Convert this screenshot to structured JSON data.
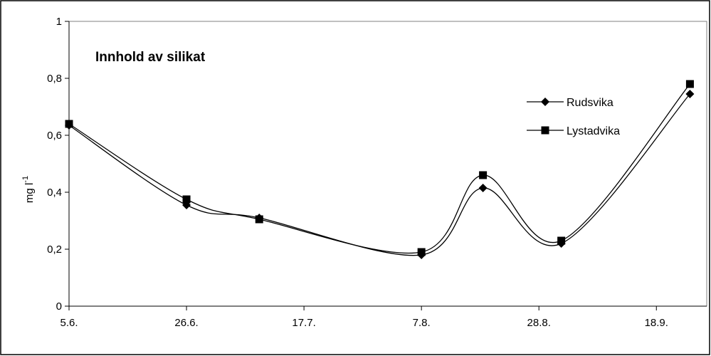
{
  "chart_data": {
    "type": "line",
    "title": "Innhold av silikat",
    "ylabel_main": "mg l",
    "ylabel_sup": "-1",
    "xlabel": "",
    "x_tick_labels": [
      "5.6.",
      "26.6.",
      "17.7.",
      "7.8.",
      "28.8.",
      "18.9."
    ],
    "x_tick_days": [
      0,
      21,
      42,
      63,
      84,
      105
    ],
    "xlim_days": [
      0,
      114
    ],
    "ylim": [
      0,
      1
    ],
    "y_ticks": [
      0,
      0.2,
      0.4,
      0.6,
      0.8,
      1
    ],
    "y_tick_labels": [
      "0",
      "0,2",
      "0,4",
      "0,6",
      "0,8",
      "1"
    ],
    "x": [
      "5.6.",
      "26.6.",
      "9.7.",
      "7.8.",
      "18.8.",
      "1.9.",
      "24.9."
    ],
    "x_days": [
      0,
      21,
      34,
      63,
      74,
      88,
      111
    ],
    "series": [
      {
        "name": "Rudsvika",
        "marker": "diamond",
        "values": [
          0.635,
          0.355,
          0.31,
          0.18,
          0.415,
          0.22,
          0.745
        ]
      },
      {
        "name": "Lystadvika",
        "marker": "square",
        "values": [
          0.64,
          0.375,
          0.305,
          0.19,
          0.46,
          0.23,
          0.78
        ]
      }
    ],
    "legend_position": "top-right",
    "grid": false
  }
}
